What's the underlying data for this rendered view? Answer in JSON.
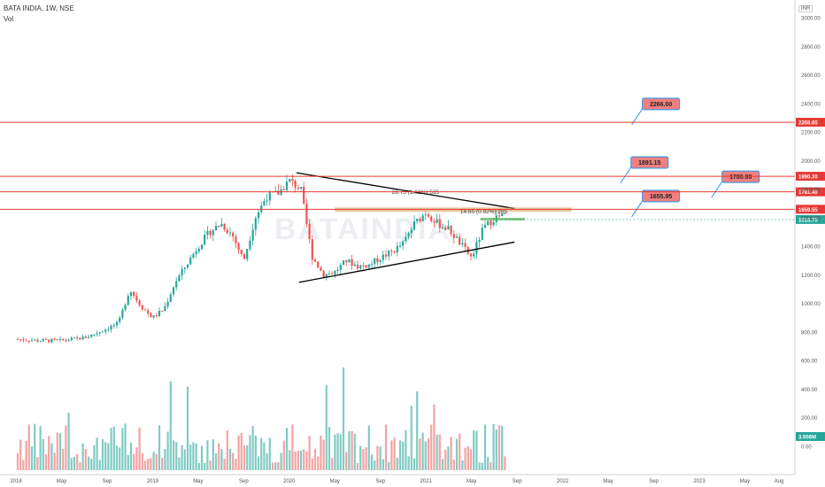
{
  "header": {
    "symbol": "BATA INDIA, 1W, NSE",
    "volume_label": "Vol",
    "currency": "INR"
  },
  "chart_data": {
    "type": "candlestick",
    "title": "BATA INDIA, 1W, NSE",
    "price_axis": {
      "ticks": [
        3000,
        2800,
        2600,
        2400,
        2200,
        2000,
        1800,
        1600,
        1400,
        1200,
        1000,
        800,
        600,
        400,
        200,
        0
      ],
      "labels": [
        "3000.00",
        "2800.00",
        "2600.00",
        "2400.00",
        "2200.00",
        "2000.00",
        "1800.00",
        "1600.00",
        "1400.00",
        "1200.00",
        "1000.00",
        "800.00",
        "600.00",
        "400.00",
        "200.00",
        "0.00"
      ]
    },
    "time_axis": {
      "labels": [
        "2018",
        "May",
        "Sep",
        "2019",
        "May",
        "Sep",
        "2020",
        "May",
        "Sep",
        "2021",
        "May",
        "Sep",
        "2022",
        "May",
        "Sep",
        "2023",
        "May",
        "Aug"
      ],
      "dates": [
        "2018-01",
        "2018-05",
        "2018-09",
        "2019-01",
        "2019-05",
        "2019-09",
        "2020-01",
        "2020-05",
        "2020-09",
        "2021-01",
        "2021-05",
        "2021-09",
        "2022-01",
        "2022-05",
        "2022-09",
        "2023-01",
        "2023-05",
        "2023-08"
      ]
    },
    "price_path": [
      [
        "2018-01",
        750
      ],
      [
        "2018-03",
        740
      ],
      [
        "2018-05",
        740
      ],
      [
        "2018-07",
        760
      ],
      [
        "2018-08",
        790
      ],
      [
        "2018-10",
        860
      ],
      [
        "2018-11",
        1100
      ],
      [
        "2018-12",
        980
      ],
      [
        "2019-01",
        900
      ],
      [
        "2019-02",
        960
      ],
      [
        "2019-03",
        1150
      ],
      [
        "2019-05",
        1400
      ],
      [
        "2019-06",
        1500
      ],
      [
        "2019-07",
        1560
      ],
      [
        "2019-08",
        1480
      ],
      [
        "2019-09",
        1300
      ],
      [
        "2019-10",
        1600
      ],
      [
        "2019-11",
        1750
      ],
      [
        "2019-12",
        1770
      ],
      [
        "2020-01",
        1860
      ],
      [
        "2020-02",
        1800
      ],
      [
        "2020-03",
        1330
      ],
      [
        "2020-04",
        1200
      ],
      [
        "2020-05",
        1220
      ],
      [
        "2020-06",
        1300
      ],
      [
        "2020-07",
        1260
      ],
      [
        "2020-08",
        1270
      ],
      [
        "2020-09",
        1320
      ],
      [
        "2020-10",
        1360
      ],
      [
        "2020-11",
        1420
      ],
      [
        "2020-12",
        1560
      ],
      [
        "2021-01",
        1640
      ],
      [
        "2021-02",
        1560
      ],
      [
        "2021-03",
        1520
      ],
      [
        "2021-04",
        1420
      ],
      [
        "2021-05",
        1320
      ],
      [
        "2021-06",
        1520
      ],
      [
        "2021-07",
        1600
      ],
      [
        "2021-08",
        1618
      ]
    ],
    "horizontal_levels": [
      {
        "value": 2268.65,
        "label": "2268.65",
        "color": "#e53935"
      },
      {
        "value": 1890.3,
        "label": "1890.30",
        "color": "#e53935"
      },
      {
        "value": 1781.4,
        "label": "1781.40",
        "color": "#e53935"
      },
      {
        "value": 1659.55,
        "label": "1659.55",
        "color": "#e53935"
      }
    ],
    "last_price": {
      "value": 1618.7,
      "label": "1618.70",
      "color": "#26a69a"
    },
    "volume_last": {
      "label": "3.906M",
      "color": "#26a69a"
    },
    "triangle": {
      "upper": [
        [
          "2020-01",
          1890
        ],
        [
          "2021-09",
          1510
        ]
      ],
      "lower": [
        [
          "2020-02",
          1160
        ],
        [
          "2021-09",
          1355
        ]
      ]
    },
    "callouts": [
      {
        "text": "2266.00",
        "price": 2400,
        "date": "2022-08"
      },
      {
        "text": "1891.15",
        "price": 1990,
        "date": "2022-07"
      },
      {
        "text": "1780.90",
        "price": 1890,
        "date": "2023-03"
      },
      {
        "text": "1655.95",
        "price": 1755,
        "date": "2022-08"
      }
    ],
    "annotations": [
      {
        "text": "26.75 (1.62%) 535",
        "price": 1755,
        "date": "2020-10"
      },
      {
        "text": "14.65 (0.92%) 285",
        "price": 1618,
        "date": "2021-04"
      }
    ],
    "watermark": "BATAINDIA",
    "colors": {
      "up": "#26a69a",
      "down": "#ef5350",
      "vol_up": "#80cbc4",
      "vol_down": "#f4a3a3"
    }
  }
}
